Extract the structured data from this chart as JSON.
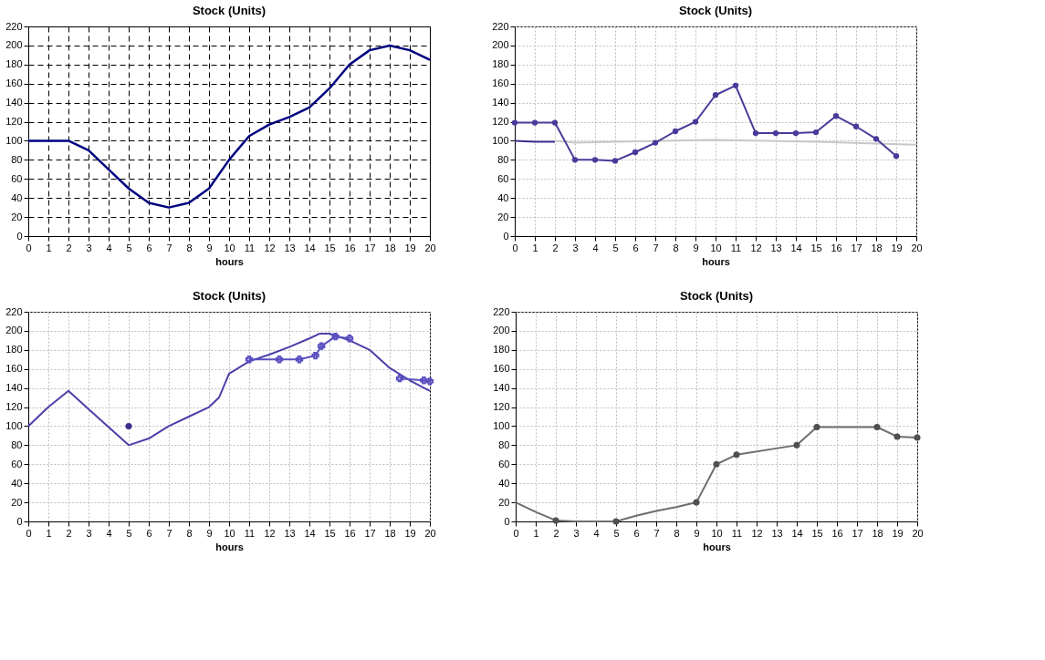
{
  "chart_data": [
    {
      "type": "line",
      "title": "Stock (Units)",
      "xlabel": "hours",
      "xlim": [
        0,
        20
      ],
      "xticks": [
        0,
        1,
        2,
        3,
        4,
        5,
        6,
        7,
        8,
        9,
        10,
        11,
        12,
        13,
        14,
        15,
        16,
        17,
        18,
        19,
        20
      ],
      "ylim": [
        0,
        220
      ],
      "yticks": [
        0,
        20,
        40,
        60,
        80,
        100,
        120,
        140,
        160,
        180,
        200,
        220
      ],
      "grid": true,
      "line_style": "solid",
      "series": [
        {
          "color": "#000080",
          "x": [
            0,
            1,
            2,
            3,
            4,
            5,
            6,
            7,
            8,
            9,
            10,
            11,
            12,
            13,
            14,
            15,
            16,
            17,
            18,
            19,
            20
          ],
          "values": [
            100,
            100,
            100,
            90,
            70,
            50,
            35,
            30,
            35,
            50,
            80,
            105,
            117,
            125,
            135,
            155,
            180,
            195,
            200,
            195,
            185
          ]
        }
      ]
    },
    {
      "type": "line",
      "title": "Stock (Units)",
      "xlabel": "hours",
      "xlim": [
        0,
        20
      ],
      "xticks": [
        0,
        1,
        2,
        3,
        4,
        5,
        6,
        7,
        8,
        9,
        10,
        11,
        12,
        13,
        14,
        15,
        16,
        17,
        18,
        19,
        20
      ],
      "ylim": [
        0,
        220
      ],
      "yticks": [
        0,
        20,
        40,
        60,
        80,
        100,
        120,
        140,
        160,
        180,
        200,
        220
      ],
      "grid": true,
      "line_style": "solid",
      "series": [
        {
          "color": "#c8c8c8",
          "x": [
            2,
            3,
            5,
            10,
            15,
            18,
            20
          ],
          "values": [
            100,
            98,
            99,
            101,
            99,
            97,
            96
          ]
        },
        {
          "color": "#3c2d8c",
          "x": [
            0,
            1,
            2
          ],
          "values": [
            100,
            99,
            99
          ]
        },
        {
          "color": "#4a3a9a",
          "marker": "circle",
          "x": [
            0,
            1,
            2,
            3,
            4,
            5,
            6,
            7,
            8,
            9,
            10,
            11,
            12,
            13,
            14,
            15,
            16,
            17,
            18,
            19
          ],
          "values": [
            119,
            119,
            119,
            80,
            80,
            79,
            88,
            98,
            110,
            120,
            148,
            158,
            108,
            108,
            108,
            109,
            126,
            115,
            102,
            84
          ]
        }
      ]
    },
    {
      "type": "line",
      "title": "Stock (Units)",
      "xlabel": "hours",
      "xlim": [
        0,
        20
      ],
      "xticks": [
        0,
        1,
        2,
        3,
        4,
        5,
        6,
        7,
        8,
        9,
        10,
        11,
        12,
        13,
        14,
        15,
        16,
        17,
        18,
        19,
        20
      ],
      "ylim": [
        0,
        220
      ],
      "yticks": [
        0,
        20,
        40,
        60,
        80,
        100,
        120,
        140,
        160,
        180,
        200,
        220
      ],
      "grid": true,
      "line_style": "solid",
      "series": [
        {
          "color": "#4b3fa8",
          "x": [
            0,
            1,
            2,
            3,
            4,
            5,
            6,
            7,
            8,
            9,
            9.5,
            10,
            11,
            12,
            13,
            14,
            14.5,
            15,
            16,
            17,
            18,
            19,
            20
          ],
          "values": [
            100,
            120,
            137,
            118,
            99,
            80,
            87,
            100,
            110,
            120,
            130,
            155,
            168,
            175,
            183,
            192,
            197,
            197,
            190,
            180,
            161,
            148,
            137
          ]
        },
        {
          "color": "#5a4fc0",
          "marker": "cross",
          "x": [
            11,
            12.5,
            13.5,
            14.3,
            14.6,
            15.3,
            16
          ],
          "values": [
            170,
            170,
            170,
            174,
            184,
            194,
            192
          ]
        },
        {
          "color": "#5a4fc0",
          "marker": "cross",
          "x": [
            18.5,
            19.7,
            20
          ],
          "values": [
            150,
            148,
            147
          ]
        },
        {
          "type": "scatter",
          "color": "#3c2d8c",
          "marker": "circle",
          "x": [
            5
          ],
          "values": [
            100
          ]
        }
      ]
    },
    {
      "type": "line",
      "title": "Stock (Units)",
      "xlabel": "hours",
      "xlim": [
        0,
        20
      ],
      "xticks": [
        0,
        1,
        2,
        3,
        4,
        5,
        6,
        7,
        8,
        9,
        10,
        11,
        12,
        13,
        14,
        15,
        16,
        17,
        18,
        19,
        20
      ],
      "ylim": [
        0,
        220
      ],
      "yticks": [
        0,
        20,
        40,
        60,
        80,
        100,
        120,
        140,
        160,
        180,
        200,
        220
      ],
      "grid": true,
      "line_style": "solid",
      "series": [
        {
          "color": "#6e6e6e",
          "x": [
            0,
            1,
            2,
            3,
            4,
            5,
            6,
            7,
            8,
            9,
            10,
            11,
            14,
            15,
            18,
            19,
            20
          ],
          "values": [
            20,
            10,
            1,
            0,
            0,
            0,
            6,
            11,
            15,
            20,
            60,
            70,
            80,
            99,
            99,
            89,
            88
          ]
        },
        {
          "type": "scatter",
          "color": "#505050",
          "marker": "circle",
          "x": [
            2,
            5,
            9,
            10,
            11,
            14,
            15,
            18,
            19,
            20
          ],
          "values": [
            1,
            0,
            20,
            60,
            70,
            80,
            99,
            99,
            89,
            88
          ]
        }
      ]
    }
  ]
}
